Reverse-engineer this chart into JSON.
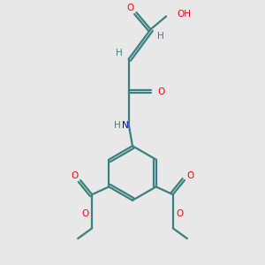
{
  "bg_color": "#e8e8e8",
  "bond_color": "#3a8080",
  "atom_colors": {
    "O": "#ff0000",
    "N": "#0000cc",
    "H": "#3a8080"
  },
  "figsize": [
    3.0,
    3.0
  ],
  "dpi": 100,
  "xlim": [
    0,
    10
  ],
  "ylim": [
    0,
    10
  ]
}
